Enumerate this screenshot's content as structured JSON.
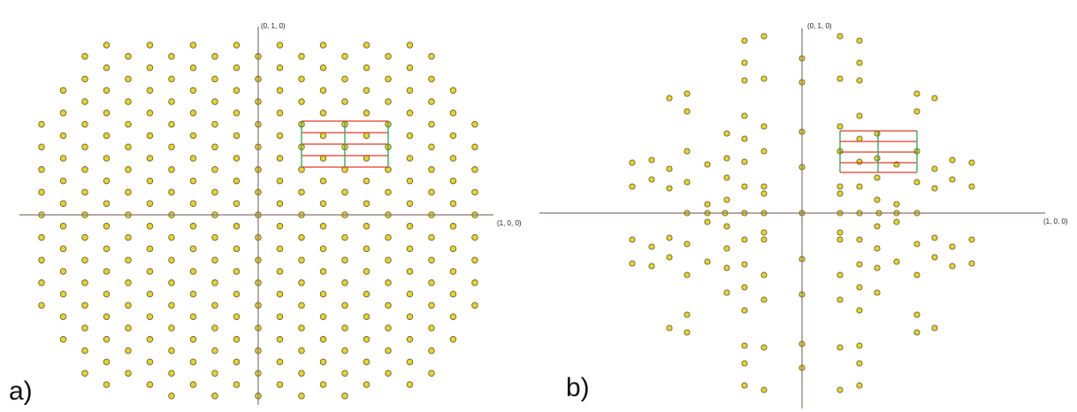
{
  "panels": [
    {
      "id": "a",
      "label": "a)",
      "axis_y_label": "(0, 1, 0)",
      "axis_x_label": "(1, 0, 0)",
      "pattern": "hexagonal lattice of diffraction spots",
      "unit_cell_colors": {
        "horizontal": "#e03a2a",
        "vertical": "#2aa84a"
      }
    },
    {
      "id": "b",
      "label": "b)",
      "axis_y_label": "(0, 1, 0)",
      "axis_x_label": "(1, 0, 0)",
      "pattern": "quasicrystal-like sparse spot pattern",
      "unit_cell_colors": {
        "horizontal": "#e03a2a",
        "vertical": "#2aa84a"
      }
    }
  ],
  "colors": {
    "spot_fill": "#e6d52a",
    "spot_stroke": "#6b6330",
    "axis": "#8a7570"
  }
}
